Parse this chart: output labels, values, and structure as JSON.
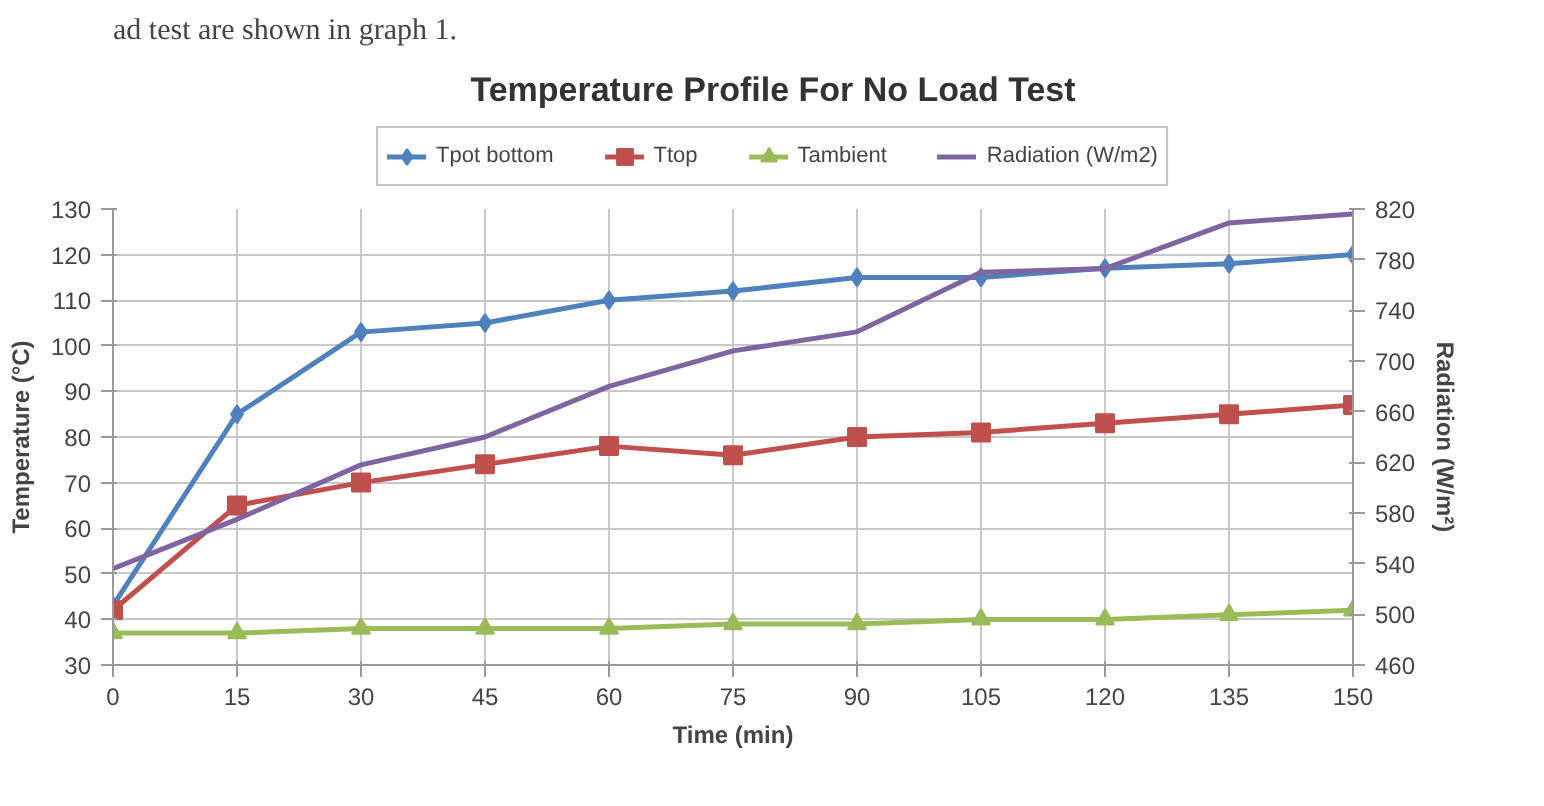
{
  "chart_data": {
    "type": "line",
    "title": "Temperature Profile For No Load Test",
    "xlabel": "Time (min)",
    "ylabel": "Temperature (°C)",
    "y2label": "Radiation (W/m²)",
    "annotations": [
      "ad test are shown in graph 1."
    ],
    "x": [
      0,
      15,
      30,
      45,
      60,
      75,
      90,
      105,
      120,
      135,
      150
    ],
    "xlim": [
      0,
      150
    ],
    "xticks": [
      0,
      15,
      30,
      45,
      60,
      75,
      90,
      105,
      120,
      135,
      150
    ],
    "ylim": [
      30,
      130
    ],
    "yticks": [
      30,
      40,
      50,
      60,
      70,
      80,
      90,
      100,
      110,
      120,
      130
    ],
    "y2lim": [
      460,
      820
    ],
    "y2ticks": [
      460,
      500,
      540,
      580,
      620,
      660,
      700,
      740,
      780,
      820
    ],
    "grid": true,
    "legend": "top",
    "series": [
      {
        "name": "Tpot bottom",
        "color": "#4f81bd",
        "marker": "diamond",
        "values": [
          43,
          85,
          103,
          105,
          110,
          112,
          115,
          115,
          117,
          118,
          120
        ]
      },
      {
        "name": "Ttop",
        "color": "#c0504d",
        "marker": "square",
        "values": [
          42,
          65,
          70,
          74,
          78,
          76,
          80,
          81,
          83,
          85,
          87
        ]
      },
      {
        "name": "Tambient",
        "color": "#9bbb59",
        "marker": "triangle",
        "values": [
          37,
          37,
          38,
          38,
          38,
          39,
          39,
          40,
          40,
          41,
          42
        ]
      },
      {
        "name": "Radiation (W/m2)",
        "color": "#8064a2",
        "marker": "none",
        "axis": "y2",
        "values": [
          536,
          575,
          618,
          640,
          680,
          708,
          723,
          770,
          773,
          809,
          816
        ]
      }
    ]
  }
}
